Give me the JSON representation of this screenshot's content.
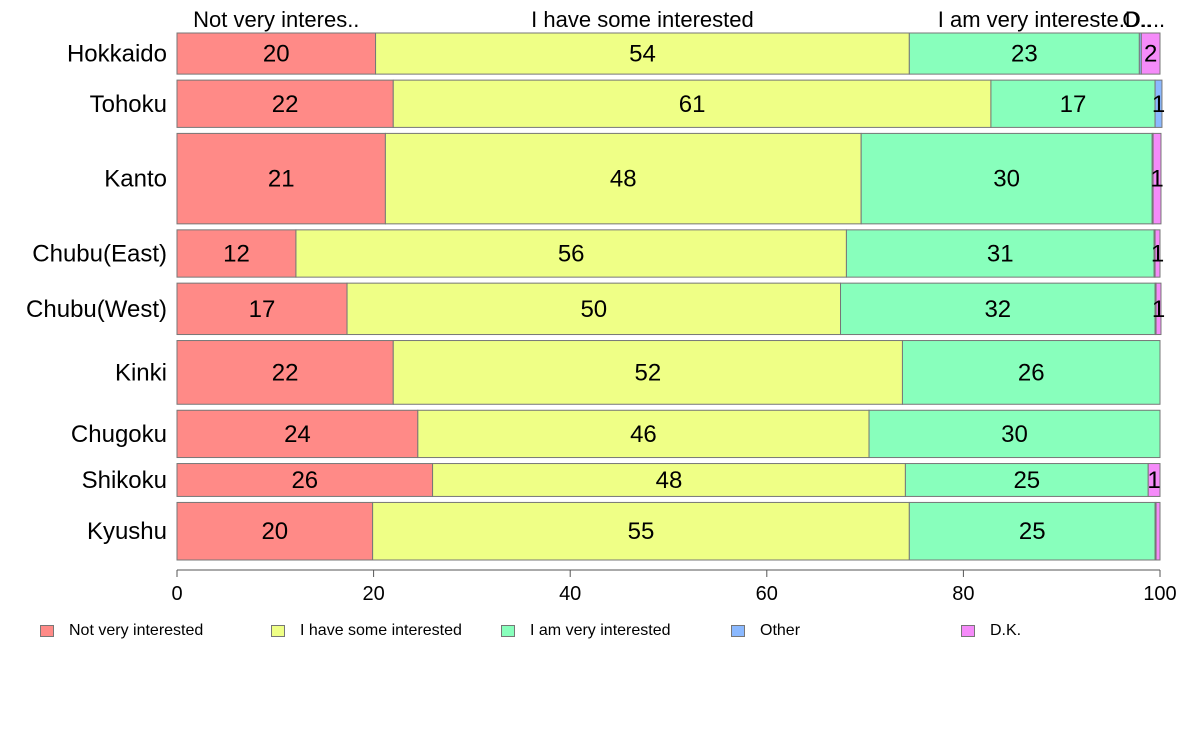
{
  "chart_data": {
    "type": "bar",
    "orientation": "horizontal",
    "stacked": true,
    "categories": [
      "Hokkaido",
      "Tohoku",
      "Kanto",
      "Chubu(East)",
      "Chubu(West)",
      "Kinki",
      "Chugoku",
      "Shikoku",
      "Kyushu"
    ],
    "series": [
      {
        "name": "Not very interested",
        "color": "#ff8a87",
        "values": [
          20.2,
          22.0,
          21.2,
          12.1,
          17.3,
          22.0,
          24.5,
          26.0,
          19.9
        ]
      },
      {
        "name": "I have some interested",
        "color": "#efff86",
        "values": [
          54.3,
          60.8,
          48.4,
          56.0,
          50.2,
          51.8,
          45.9,
          48.1,
          54.6
        ]
      },
      {
        "name": "I am very interested",
        "color": "#88ffbc",
        "values": [
          23.4,
          16.7,
          29.6,
          31.3,
          32.0,
          26.2,
          29.6,
          24.7,
          25.0
        ]
      },
      {
        "name": "Other",
        "color": "#8bb9ff",
        "values": [
          0.2,
          0.7,
          0.1,
          0.1,
          0.1,
          0.0,
          0.0,
          0.0,
          0.1
        ]
      },
      {
        "name": "D.K.",
        "color": "#f58bf9",
        "values": [
          1.9,
          0.0,
          0.8,
          0.5,
          0.5,
          0.0,
          0.0,
          1.2,
          0.4
        ]
      }
    ],
    "data_labels": [
      [
        "20",
        "54",
        "23",
        "",
        "2"
      ],
      [
        "22",
        "61",
        "17",
        "1",
        ""
      ],
      [
        "21",
        "48",
        "30",
        "",
        "1"
      ],
      [
        "12",
        "56",
        "31",
        "",
        "1"
      ],
      [
        "17",
        "50",
        "32",
        "",
        "1"
      ],
      [
        "22",
        "52",
        "26",
        "",
        ""
      ],
      [
        "24",
        "46",
        "30",
        "",
        ""
      ],
      [
        "26",
        "48",
        "25",
        "",
        "1"
      ],
      [
        "20",
        "55",
        "25",
        "",
        ""
      ]
    ],
    "row_weights": [
      1,
      1.15,
      2.2,
      1.15,
      1.25,
      1.55,
      1.15,
      0.8,
      1.4
    ],
    "top_labels": [
      "Not very interes..",
      "I have some interested",
      "I am very intereste..",
      "O..",
      "D...."
    ],
    "x_ticks": [
      0,
      20,
      40,
      60,
      80,
      100
    ],
    "xlim": [
      0,
      100
    ],
    "xlabel": "",
    "ylabel": "",
    "grid": false,
    "legend_position": "bottom"
  },
  "legend": {
    "items": [
      {
        "label": "Not very interested",
        "color": "#ff8a87"
      },
      {
        "label": "I have some interested",
        "color": "#efff86"
      },
      {
        "label": "I am very interested",
        "color": "#88ffbc"
      },
      {
        "label": "Other",
        "color": "#8bb9ff"
      },
      {
        "label": "D.K.",
        "color": "#f58bf9"
      }
    ]
  }
}
